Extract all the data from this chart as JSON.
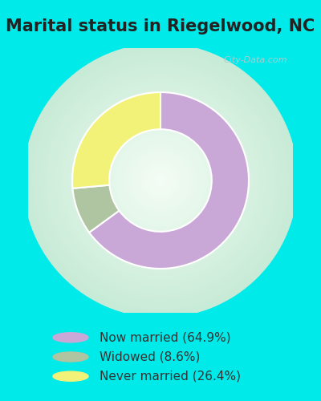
{
  "title": "Marital status in Riegelwood, NC",
  "slices": [
    64.9,
    8.6,
    26.4
  ],
  "labels": [
    "Now married (64.9%)",
    "Widowed (8.6%)",
    "Never married (26.4%)"
  ],
  "colors": [
    "#c9a8d8",
    "#afc4a0",
    "#f2f278"
  ],
  "bg_cyan": "#00eaea",
  "bg_panel": "#ddeedd",
  "title_color": "#222222",
  "title_fontsize": 15,
  "legend_fontsize": 11,
  "startangle": 90,
  "donut_width": 0.42,
  "watermark": "City-Data.com",
  "watermark_color": "#aacccc",
  "legend_text_color": "#333333"
}
